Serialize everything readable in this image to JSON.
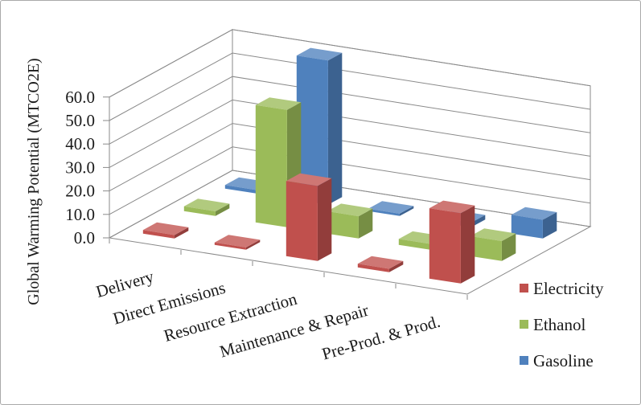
{
  "window": {
    "background": "#ffffff",
    "border_color": "#a9a9a9"
  },
  "chart_data": {
    "type": "bar",
    "projection": "3d-column",
    "title": "",
    "xlabel": "",
    "ylabel": "Global Warming Potential (MTCO2E)",
    "categories": [
      "Delivery",
      "Direct Emissions",
      "Resource Extraction",
      "Maintenance & Repair",
      "Pre-Prod. & Prod."
    ],
    "series": [
      {
        "name": "Electricity",
        "color": "#C0504D",
        "values": [
          1.5,
          1.0,
          32.0,
          1.5,
          30.0
        ]
      },
      {
        "name": "Ethanol",
        "color": "#9BBB59",
        "values": [
          2.0,
          50.0,
          9.5,
          2.5,
          8.5
        ]
      },
      {
        "name": "Gasoline",
        "color": "#4F81BD",
        "values": [
          1.5,
          61.5,
          1.0,
          2.0,
          8.0
        ]
      }
    ],
    "y_axis": {
      "min": 0,
      "max": 60,
      "step": 10,
      "tick_labels": [
        "0.0",
        "10.0",
        "20.0",
        "30.0",
        "40.0",
        "50.0",
        "60.0"
      ]
    },
    "legend": {
      "position": "bottom-right",
      "entries": [
        "Electricity",
        "Ethanol",
        "Gasoline"
      ]
    },
    "grid": true,
    "gridline_color": "#8a8a8a",
    "axis_text_color": "#1a1a1a"
  }
}
